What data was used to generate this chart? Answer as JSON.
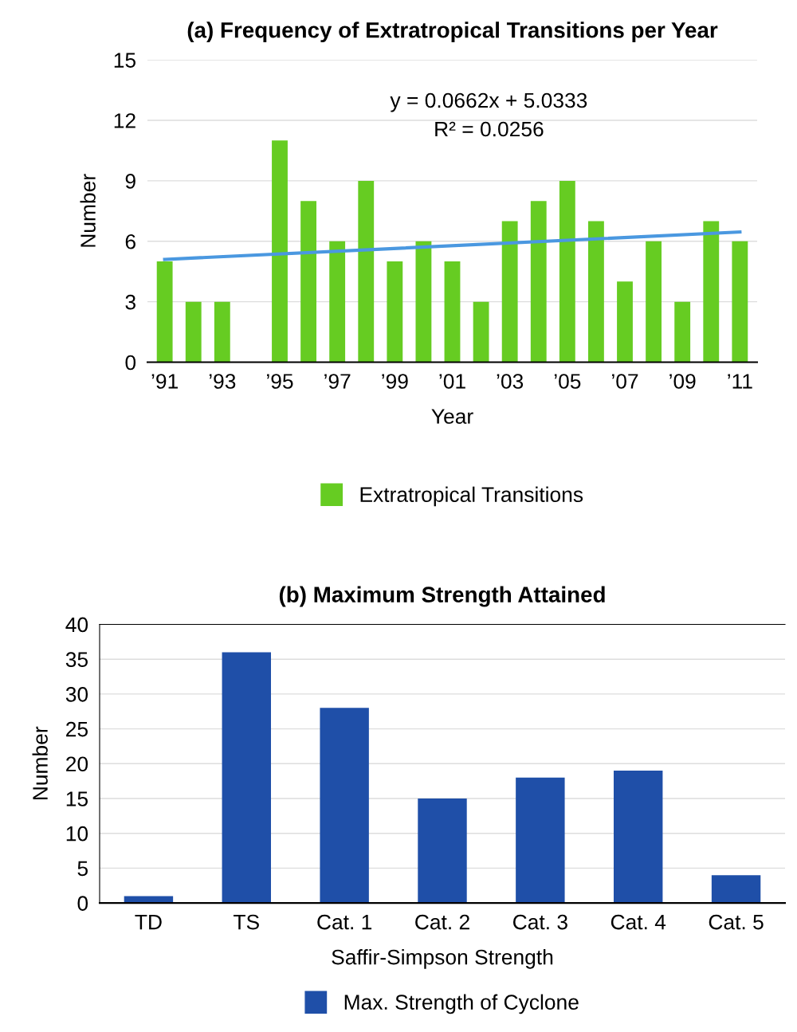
{
  "chart_data": [
    {
      "type": "bar",
      "title": "(a) Frequency of Extratropical Transitions per Year",
      "xlabel": "Year",
      "ylabel": "Number",
      "x": [
        1991,
        1992,
        1993,
        1994,
        1995,
        1996,
        1997,
        1998,
        1999,
        2000,
        2001,
        2002,
        2003,
        2004,
        2005,
        2006,
        2007,
        2008,
        2009,
        2010,
        2011
      ],
      "series": [
        {
          "name": "Extratropical Transitions",
          "color": "#66cc22",
          "values": [
            5,
            3,
            3,
            0,
            11,
            8,
            6,
            9,
            5,
            6,
            5,
            3,
            7,
            8,
            9,
            7,
            4,
            6,
            3,
            7,
            6
          ]
        },
        {
          "type": "line",
          "color": "#4a98e0",
          "x": [
            1991,
            2011
          ],
          "values": [
            5.1,
            6.46
          ]
        }
      ],
      "xlim": [
        1990.4,
        2011.6
      ],
      "xticks": [
        {
          "value": 1991,
          "label": "’91"
        },
        {
          "value": 1993,
          "label": "’93"
        },
        {
          "value": 1995,
          "label": "’95"
        },
        {
          "value": 1997,
          "label": "’97"
        },
        {
          "value": 1999,
          "label": "’99"
        },
        {
          "value": 2001,
          "label": "’01"
        },
        {
          "value": 2003,
          "label": "’03"
        },
        {
          "value": 2005,
          "label": "’05"
        },
        {
          "value": 2007,
          "label": "’07"
        },
        {
          "value": 2009,
          "label": "’09"
        },
        {
          "value": 2011,
          "label": "’11"
        }
      ],
      "ylim": [
        0,
        15
      ],
      "yticks": [
        0,
        3,
        6,
        9,
        12,
        15
      ],
      "annotations": [
        "y = 0.0662x + 5.0333",
        "R² = 0.0256"
      ],
      "grid": "y",
      "legend": "bottom"
    },
    {
      "type": "bar",
      "title": "(b) Maximum Strength Attained",
      "xlabel": "Saffir-Simpson Strength",
      "ylabel": "Number",
      "categories": [
        "TD",
        "TS",
        "Cat. 1",
        "Cat. 2",
        "Cat. 3",
        "Cat. 4",
        "Cat. 5"
      ],
      "series": [
        {
          "name": "Max. Strength of Cyclone",
          "color": "#1f4fa8",
          "values": [
            1,
            36,
            28,
            15,
            18,
            19,
            4
          ]
        }
      ],
      "ylim": [
        0,
        40
      ],
      "yticks": [
        0,
        5,
        10,
        15,
        20,
        25,
        30,
        35,
        40
      ],
      "grid": "y",
      "legend": "bottom"
    }
  ]
}
